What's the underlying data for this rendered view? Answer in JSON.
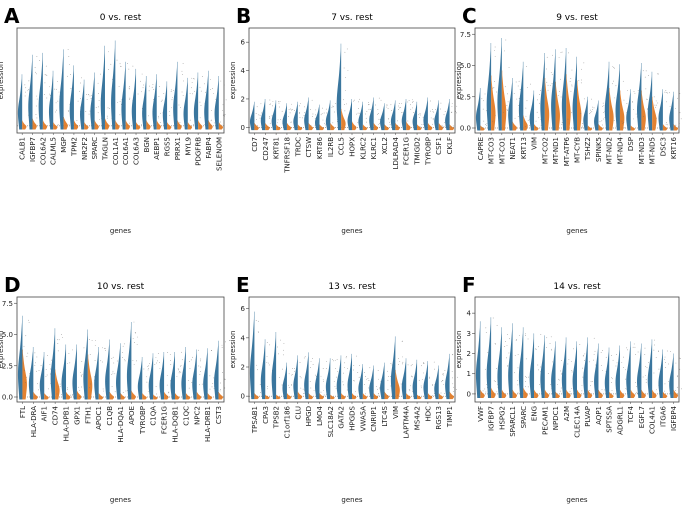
{
  "colors": {
    "primary": "#2f6f99",
    "secondary": "#e07b27",
    "zero_line": "#555555",
    "points": "#6a6a6a"
  },
  "chart_data": [
    {
      "letter": "A",
      "type": "violin",
      "title": "0 vs. rest",
      "xlabel": "genes",
      "ylabel": "expression",
      "ylim": [
        -0.4,
        5.5
      ],
      "yticks": [],
      "genes": [
        "CALB1",
        "IGFBP7",
        "COL6A2",
        "CALML5",
        "MGP",
        "TPM2",
        "NR2F2",
        "SPARC",
        "TAGLN",
        "COL1A1",
        "COL6A1",
        "COL6A3",
        "BGN",
        "AEBP1",
        "RGS5",
        "PRRX1",
        "MYL9",
        "PDGFRB",
        "FABP4",
        "SELENOM"
      ],
      "primary_max": [
        2.9,
        4.0,
        4.1,
        3.1,
        4.3,
        3.4,
        2.6,
        3.0,
        4.5,
        4.8,
        3.6,
        3.2,
        2.8,
        2.9,
        2.5,
        3.6,
        2.7,
        3.0,
        3.1,
        2.8
      ],
      "secondary_max": [
        0.3,
        0.4,
        0.3,
        0.2,
        0.5,
        0.3,
        0.2,
        0.3,
        0.4,
        0.3,
        0.3,
        0.2,
        0.3,
        0.3,
        0.2,
        0.3,
        0.2,
        0.3,
        0.3,
        0.2
      ]
    },
    {
      "letter": "B",
      "type": "violin",
      "title": "7 vs. rest",
      "xlabel": "genes",
      "ylabel": "expression",
      "ylim": [
        -0.4,
        7.0
      ],
      "yticks": [
        0,
        2,
        4,
        6
      ],
      "genes": [
        "CD7",
        "CD247",
        "KRT81",
        "TNFRSF18",
        "TRDC",
        "CTSW",
        "KRT86",
        "IL2RB",
        "CCL5",
        "HOPX",
        "KLRC2",
        "KLRC1",
        "XCL2",
        "LDLRAD4",
        "FCER1G",
        "TMIGD2",
        "TYROBP",
        "CSF1",
        "CKLF"
      ],
      "primary_max": [
        1.8,
        2.0,
        1.9,
        1.7,
        1.8,
        2.1,
        1.6,
        1.9,
        5.9,
        2.0,
        1.8,
        2.1,
        1.7,
        1.9,
        2.0,
        1.8,
        2.1,
        1.9,
        2.0
      ],
      "secondary_max": [
        0.3,
        0.3,
        0.2,
        0.3,
        0.2,
        0.3,
        0.2,
        0.3,
        1.3,
        0.4,
        0.2,
        0.3,
        0.2,
        0.3,
        0.4,
        0.2,
        0.3,
        0.3,
        0.2
      ]
    },
    {
      "letter": "C",
      "type": "violin",
      "title": "9 vs. rest",
      "xlabel": "genes",
      "ylabel": "expression",
      "ylim": [
        -0.4,
        8.0
      ],
      "yticks": [
        0.0,
        2.5,
        5.0,
        7.5
      ],
      "genes": [
        "CAPRE",
        "MT-CO3",
        "MT-CO1",
        "NEAT1",
        "KRT13",
        "VIM",
        "MT-CO2",
        "MT-ND1",
        "MT-ATP6",
        "MT-CYB",
        "TSHZ2",
        "SPINK5",
        "MT-ND2",
        "MT-ND4",
        "DSP",
        "MT-ND3",
        "MT-ND5",
        "DSC3",
        "KRT16"
      ],
      "primary_max": [
        3.2,
        6.8,
        7.2,
        4.0,
        5.3,
        3.0,
        6.0,
        6.3,
        6.4,
        5.7,
        2.5,
        2.2,
        5.3,
        5.1,
        3.1,
        5.2,
        4.5,
        3.1,
        2.9
      ],
      "secondary_max": [
        0.2,
        4.2,
        4.6,
        0.5,
        1.0,
        0.3,
        4.0,
        3.7,
        4.3,
        3.8,
        0.2,
        0.3,
        3.2,
        3.0,
        0.2,
        3.0,
        2.5,
        0.3,
        0.3
      ]
    },
    {
      "letter": "D",
      "type": "violin",
      "title": "10 vs. rest",
      "xlabel": "genes",
      "ylabel": "expression",
      "ylim": [
        -0.4,
        8.0
      ],
      "yticks": [
        0.0,
        2.5,
        5.0,
        7.5
      ],
      "genes": [
        "FTL",
        "HLA-DRA",
        "AIF1",
        "CD74",
        "HLA-DPB1",
        "GPX1",
        "FTH1",
        "APOC1",
        "C1QB",
        "HLA-DQA1",
        "APOE",
        "TYROBP",
        "C1QA",
        "FCER1G",
        "HLA-DQB1",
        "C1QC",
        "NPC2",
        "HLA-DRB1",
        "CST3"
      ],
      "primary_max": [
        6.5,
        4.0,
        3.6,
        5.5,
        4.2,
        4.2,
        5.4,
        4.0,
        4.6,
        4.3,
        6.0,
        3.2,
        3.5,
        3.6,
        3.6,
        4.0,
        3.8,
        3.9,
        4.5
      ],
      "secondary_max": [
        3.8,
        0.4,
        0.3,
        2.2,
        0.4,
        0.5,
        3.4,
        0.3,
        0.4,
        0.3,
        0.5,
        0.3,
        0.2,
        0.4,
        0.3,
        0.3,
        0.4,
        0.3,
        0.4
      ]
    },
    {
      "letter": "E",
      "type": "violin",
      "title": "13 vs. rest",
      "xlabel": "genes",
      "ylabel": "expression",
      "ylim": [
        -0.4,
        6.8
      ],
      "yticks": [
        0,
        2,
        4,
        6
      ],
      "genes": [
        "TPSAB1",
        "CPA3",
        "TPSB2",
        "C1orf186",
        "CLU",
        "HPGD",
        "LMO4",
        "SLC18A2",
        "GATA2",
        "HPGDS",
        "VWA5A",
        "CNRIP1",
        "LTC4S",
        "VIM",
        "LAPTM4A",
        "MS4A2",
        "HDC",
        "RGS13",
        "TIMP1"
      ],
      "primary_max": [
        5.8,
        3.9,
        4.4,
        2.3,
        2.8,
        3.0,
        2.6,
        2.6,
        2.8,
        2.9,
        2.2,
        2.1,
        2.3,
        4.1,
        2.6,
        2.5,
        2.4,
        2.1,
        2.9
      ],
      "secondary_max": [
        0.2,
        0.1,
        0.1,
        0.2,
        0.3,
        0.2,
        0.2,
        0.1,
        0.2,
        0.2,
        0.2,
        0.2,
        0.3,
        1.8,
        0.2,
        0.1,
        0.2,
        0.2,
        0.3
      ]
    },
    {
      "letter": "F",
      "type": "violin",
      "title": "14 vs. rest",
      "xlabel": "genes",
      "ylabel": "expression",
      "ylim": [
        -0.4,
        4.8
      ],
      "yticks": [
        0,
        1,
        2,
        3,
        4
      ],
      "genes": [
        "VWF",
        "IGFBP7",
        "HSPG2",
        "SPARCL1",
        "SPARC",
        "ENG",
        "PECAM1",
        "NPDC1",
        "A2M",
        "CLEC14A",
        "PLVAP",
        "AQP1",
        "SPTSSA",
        "ADGRL1",
        "TCF4",
        "EGFL7",
        "COL4A1",
        "ITGA6",
        "IGFBP4"
      ],
      "primary_max": [
        3.6,
        3.8,
        3.3,
        3.5,
        3.3,
        3.0,
        2.9,
        2.6,
        2.8,
        2.6,
        2.8,
        2.5,
        2.3,
        2.4,
        2.6,
        2.5,
        2.7,
        2.2,
        2.0
      ],
      "secondary_max": [
        0.2,
        0.3,
        0.2,
        0.2,
        0.3,
        0.2,
        0.2,
        0.1,
        0.2,
        0.2,
        0.2,
        0.2,
        0.1,
        0.2,
        0.2,
        0.2,
        0.2,
        0.1,
        0.2
      ]
    }
  ]
}
